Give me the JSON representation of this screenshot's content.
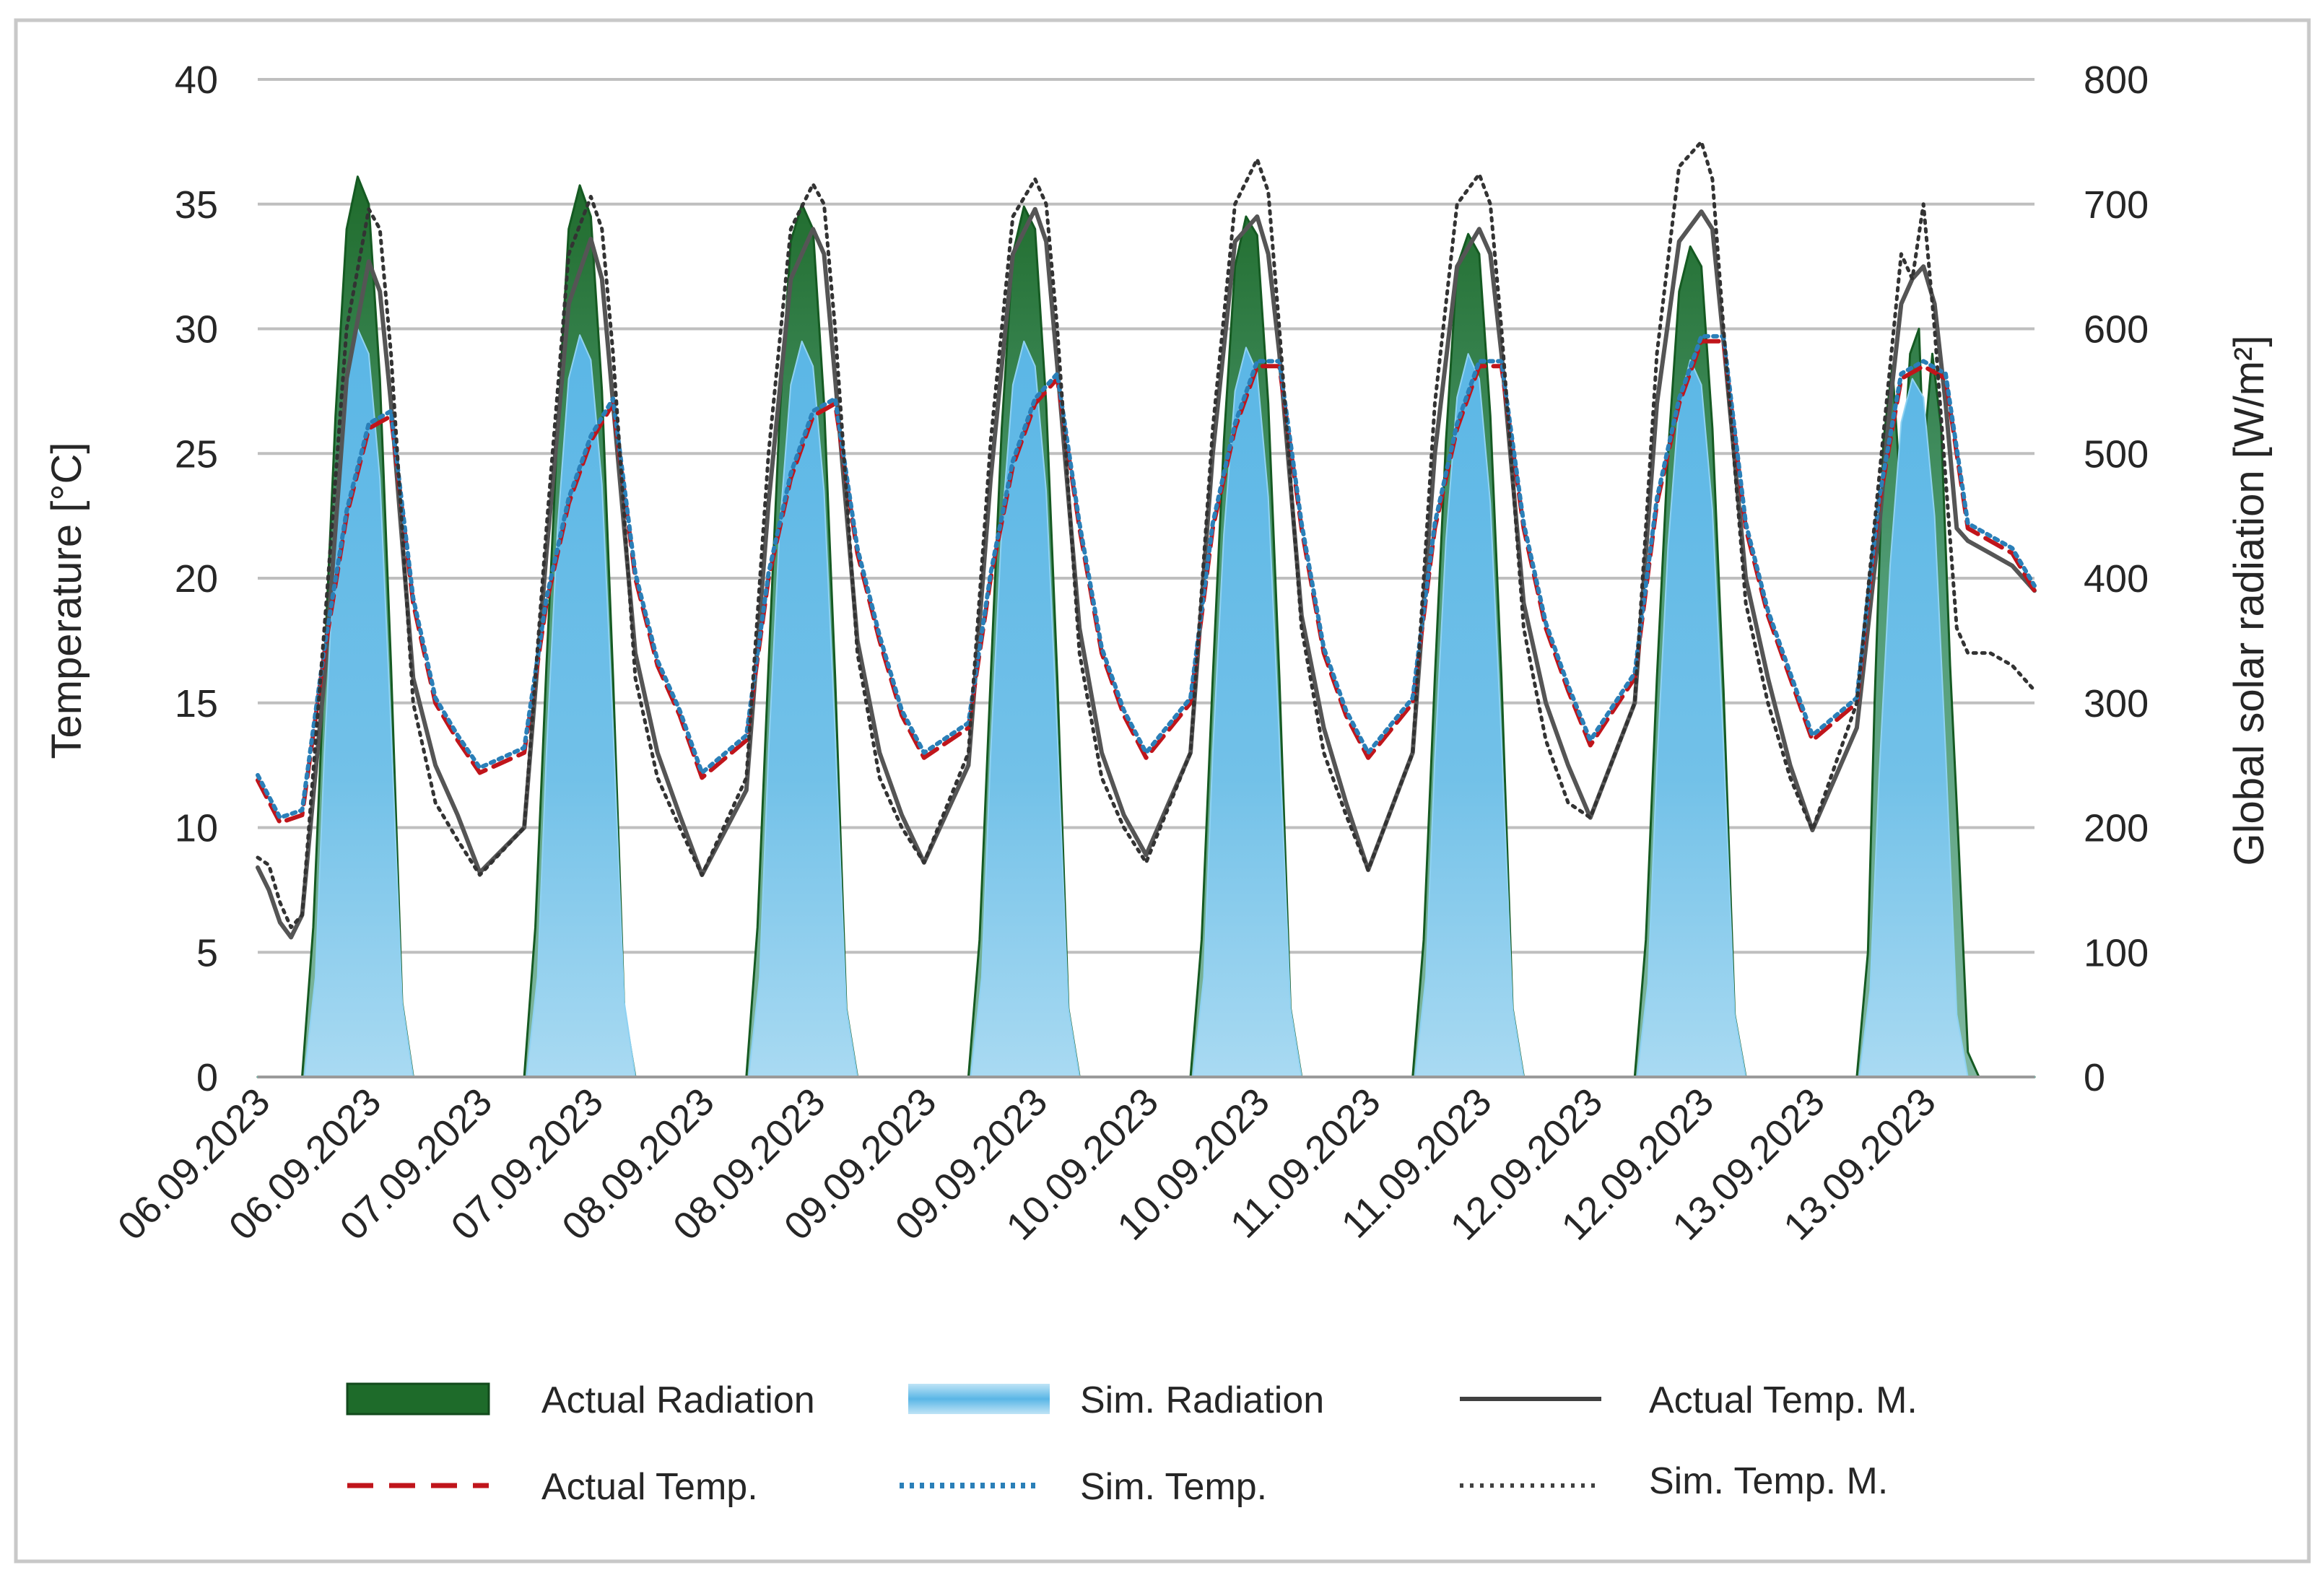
{
  "chart_data": {
    "type": "line",
    "title": "",
    "xlabel": "",
    "ylabel": "Temperature [°C]",
    "y2label": "Global solar radiation [W/m²]",
    "ylim": [
      0,
      40
    ],
    "y2lim": [
      0,
      800
    ],
    "yticks": [
      "0",
      "5",
      "10",
      "15",
      "20",
      "25",
      "30",
      "35",
      "40"
    ],
    "y2ticks": [
      "0",
      "100",
      "200",
      "300",
      "400",
      "500",
      "600",
      "700",
      "800"
    ],
    "xlim": [
      0,
      8
    ],
    "x_unit": "days since 06.09.2023 00:00",
    "x_tick_labels": [
      "06.09.2023",
      "06.09.2023",
      "07.09.2023",
      "07.09.2023",
      "08.09.2023",
      "08.09.2023",
      "09.09.2023",
      "09.09.2023",
      "10.09.2023",
      "10.09.2023",
      "11.09.2023",
      "11.09.2023",
      "12.09.2023",
      "12.09.2023",
      "13.09.2023",
      "13.09.2023"
    ],
    "grid": true,
    "legend_position": "bottom",
    "series": [
      {
        "name": "Actual Radiation",
        "axis": "right",
        "kind": "area",
        "color": "#1e6b2a",
        "x": [
          0,
          0.2,
          0.25,
          0.3,
          0.35,
          0.4,
          0.45,
          0.5,
          0.55,
          0.6,
          0.65,
          0.7,
          0.75,
          0.8,
          1,
          1.2,
          1.25,
          1.3,
          1.35,
          1.4,
          1.45,
          1.5,
          1.55,
          1.6,
          1.65,
          1.7,
          1.75,
          1.8,
          2,
          2.2,
          2.25,
          2.3,
          2.35,
          2.4,
          2.45,
          2.5,
          2.55,
          2.6,
          2.65,
          2.7,
          2.75,
          2.8,
          3,
          3.2,
          3.25,
          3.3,
          3.35,
          3.4,
          3.45,
          3.5,
          3.55,
          3.6,
          3.65,
          3.7,
          3.75,
          3.8,
          4,
          4.2,
          4.25,
          4.3,
          4.35,
          4.4,
          4.45,
          4.5,
          4.55,
          4.6,
          4.65,
          4.7,
          4.75,
          4.8,
          5,
          5.2,
          5.25,
          5.3,
          5.35,
          5.4,
          5.45,
          5.5,
          5.55,
          5.6,
          5.65,
          5.7,
          5.75,
          5.8,
          6,
          6.2,
          6.25,
          6.3,
          6.35,
          6.4,
          6.45,
          6.5,
          6.55,
          6.6,
          6.65,
          6.7,
          6.75,
          6.8,
          7,
          7.2,
          7.25,
          7.28,
          7.32,
          7.36,
          7.4,
          7.44,
          7.48,
          7.5,
          7.54,
          7.58,
          7.62,
          7.66,
          7.7,
          7.75,
          7.8,
          8
        ],
        "y": [
          0,
          0,
          120,
          330,
          530,
          680,
          722,
          700,
          560,
          330,
          60,
          0,
          0,
          0,
          0,
          0,
          120,
          330,
          520,
          680,
          715,
          690,
          550,
          320,
          55,
          0,
          0,
          0,
          0,
          0,
          120,
          330,
          530,
          670,
          700,
          680,
          540,
          320,
          55,
          0,
          0,
          0,
          0,
          0,
          110,
          320,
          520,
          660,
          698,
          680,
          540,
          320,
          55,
          0,
          0,
          0,
          0,
          0,
          110,
          320,
          510,
          650,
          690,
          675,
          540,
          320,
          55,
          0,
          0,
          0,
          0,
          0,
          110,
          320,
          510,
          650,
          676,
          660,
          530,
          320,
          55,
          0,
          0,
          0,
          0,
          0,
          110,
          320,
          500,
          630,
          666,
          650,
          520,
          310,
          50,
          0,
          0,
          0,
          0,
          0,
          100,
          300,
          510,
          570,
          460,
          580,
          600,
          500,
          580,
          520,
          330,
          180,
          20,
          0,
          0,
          0
        ]
      },
      {
        "name": "Sim. Radiation",
        "axis": "right",
        "kind": "area",
        "color": "#6ec1e4",
        "x": [
          0,
          0.21,
          0.26,
          0.3,
          0.35,
          0.4,
          0.45,
          0.5,
          0.55,
          0.6,
          0.65,
          0.7,
          0.75,
          1,
          1.21,
          1.26,
          1.3,
          1.35,
          1.4,
          1.45,
          1.5,
          1.55,
          1.6,
          1.65,
          1.7,
          1.75,
          2,
          2.21,
          2.26,
          2.3,
          2.35,
          2.4,
          2.45,
          2.5,
          2.55,
          2.6,
          2.65,
          2.7,
          2.75,
          3,
          3.21,
          3.26,
          3.3,
          3.35,
          3.4,
          3.45,
          3.5,
          3.55,
          3.6,
          3.65,
          3.7,
          3.75,
          4,
          4.21,
          4.26,
          4.3,
          4.35,
          4.4,
          4.45,
          4.5,
          4.55,
          4.6,
          4.65,
          4.7,
          4.75,
          5,
          5.21,
          5.26,
          5.3,
          5.35,
          5.4,
          5.45,
          5.5,
          5.55,
          5.6,
          5.65,
          5.7,
          5.75,
          6,
          6.21,
          6.26,
          6.3,
          6.35,
          6.4,
          6.45,
          6.5,
          6.55,
          6.6,
          6.65,
          6.7,
          6.75,
          7,
          7.21,
          7.26,
          7.3,
          7.35,
          7.4,
          7.45,
          7.5,
          7.55,
          7.6,
          7.65,
          7.7,
          7.75,
          8
        ],
        "y": [
          0,
          0,
          80,
          260,
          440,
          560,
          600,
          580,
          480,
          280,
          60,
          0,
          0,
          0,
          0,
          80,
          260,
          440,
          560,
          595,
          575,
          475,
          280,
          60,
          0,
          0,
          0,
          0,
          80,
          260,
          440,
          555,
          590,
          570,
          470,
          275,
          55,
          0,
          0,
          0,
          0,
          80,
          260,
          440,
          555,
          590,
          570,
          470,
          275,
          55,
          0,
          0,
          0,
          0,
          80,
          260,
          435,
          550,
          585,
          565,
          465,
          270,
          55,
          0,
          0,
          0,
          0,
          80,
          255,
          430,
          545,
          580,
          560,
          460,
          270,
          55,
          0,
          0,
          0,
          0,
          75,
          250,
          425,
          540,
          575,
          555,
          455,
          265,
          50,
          0,
          0,
          0,
          0,
          70,
          240,
          410,
          525,
          560,
          545,
          450,
          260,
          50,
          0,
          0,
          0
        ]
      },
      {
        "name": "Actual Temp. M.",
        "axis": "left",
        "kind": "line",
        "color": "#595959",
        "x": [
          0,
          0.05,
          0.1,
          0.15,
          0.2,
          0.3,
          0.4,
          0.5,
          0.55,
          0.6,
          0.7,
          0.8,
          0.9,
          1,
          1.2,
          1.3,
          1.4,
          1.5,
          1.55,
          1.6,
          1.7,
          1.8,
          1.9,
          2,
          2.2,
          2.3,
          2.4,
          2.5,
          2.55,
          2.6,
          2.7,
          2.8,
          2.9,
          3,
          3.2,
          3.3,
          3.4,
          3.5,
          3.55,
          3.6,
          3.7,
          3.8,
          3.9,
          4,
          4.2,
          4.3,
          4.4,
          4.5,
          4.55,
          4.6,
          4.7,
          4.8,
          4.9,
          5,
          5.2,
          5.3,
          5.4,
          5.5,
          5.55,
          5.6,
          5.7,
          5.8,
          5.9,
          6,
          6.2,
          6.3,
          6.4,
          6.5,
          6.55,
          6.6,
          6.7,
          6.8,
          6.9,
          7,
          7.2,
          7.3,
          7.35,
          7.4,
          7.45,
          7.5,
          7.55,
          7.6,
          7.65,
          7.7,
          7.8,
          7.9,
          8
        ],
        "y": [
          8.4,
          7.5,
          6.2,
          5.6,
          6.5,
          16,
          28,
          32.7,
          31.5,
          27,
          16,
          12.5,
          10.5,
          8.2,
          10,
          21,
          31,
          33.6,
          32,
          27,
          17,
          13,
          10.5,
          8.1,
          11.5,
          23,
          32,
          34,
          33,
          28,
          17.5,
          13,
          10.5,
          8.6,
          12.5,
          24,
          33,
          34.8,
          33.5,
          28.5,
          18,
          13,
          10.5,
          8.9,
          13,
          25,
          33.5,
          34.5,
          33,
          29,
          18.5,
          14,
          11,
          8.3,
          13,
          25,
          32.5,
          34,
          33,
          29,
          19,
          15,
          12.5,
          10.4,
          15,
          27,
          33.5,
          34.7,
          34,
          29.5,
          20,
          16,
          12.5,
          9.9,
          14,
          22,
          27,
          31,
          32,
          32.5,
          31,
          27,
          22,
          21.5,
          21,
          20.5,
          19.5
        ]
      },
      {
        "name": "Actual Temp.",
        "axis": "left",
        "kind": "line",
        "color": "#c0151b",
        "x": [
          0,
          0.1,
          0.2,
          0.3,
          0.4,
          0.5,
          0.6,
          0.7,
          0.8,
          0.9,
          1,
          1.2,
          1.3,
          1.4,
          1.5,
          1.6,
          1.7,
          1.8,
          1.9,
          2,
          2.2,
          2.3,
          2.4,
          2.5,
          2.6,
          2.7,
          2.8,
          2.9,
          3,
          3.2,
          3.3,
          3.4,
          3.5,
          3.6,
          3.7,
          3.8,
          3.9,
          4,
          4.2,
          4.3,
          4.4,
          4.5,
          4.6,
          4.7,
          4.8,
          4.9,
          5,
          5.2,
          5.3,
          5.4,
          5.5,
          5.6,
          5.7,
          5.8,
          5.9,
          6,
          6.2,
          6.3,
          6.4,
          6.5,
          6.6,
          6.7,
          6.8,
          6.9,
          7,
          7.2,
          7.3,
          7.4,
          7.5,
          7.6,
          7.7,
          7.8,
          7.9,
          8
        ],
        "y": [
          11.9,
          10.2,
          10.5,
          17,
          22.5,
          26,
          26.5,
          19,
          15,
          13.5,
          12.2,
          13,
          19,
          23,
          25.5,
          27,
          20,
          16.5,
          14.5,
          12,
          13.5,
          20,
          24,
          26.5,
          27,
          21,
          17.5,
          14.5,
          12.8,
          14,
          20,
          24.5,
          27,
          28,
          22,
          17,
          14.5,
          12.8,
          15,
          22,
          26,
          28.5,
          28.5,
          22,
          17,
          14.5,
          12.8,
          15,
          22,
          26,
          28.5,
          28.5,
          22,
          18,
          15.5,
          13.3,
          16,
          23,
          27,
          29.5,
          29.5,
          22,
          18.5,
          16,
          13.5,
          15,
          23,
          28,
          28.5,
          28,
          22,
          21.5,
          21,
          19.5
        ]
      },
      {
        "name": "Sim. Temp.",
        "axis": "left",
        "kind": "line",
        "color": "#2a7fb8",
        "x": [
          0,
          0.1,
          0.2,
          0.3,
          0.4,
          0.5,
          0.6,
          0.7,
          0.8,
          0.9,
          1,
          1.2,
          1.3,
          1.4,
          1.5,
          1.6,
          1.7,
          1.8,
          1.9,
          2,
          2.2,
          2.3,
          2.4,
          2.5,
          2.6,
          2.7,
          2.8,
          2.9,
          3,
          3.2,
          3.3,
          3.4,
          3.5,
          3.6,
          3.7,
          3.8,
          3.9,
          4,
          4.2,
          4.3,
          4.4,
          4.5,
          4.6,
          4.7,
          4.8,
          4.9,
          5,
          5.2,
          5.3,
          5.4,
          5.5,
          5.6,
          5.7,
          5.8,
          5.9,
          6,
          6.2,
          6.3,
          6.4,
          6.5,
          6.6,
          6.7,
          6.8,
          6.9,
          7,
          7.2,
          7.3,
          7.4,
          7.5,
          7.6,
          7.7,
          7.8,
          7.9,
          8
        ],
        "y": [
          12.1,
          10.4,
          10.7,
          17.2,
          22.7,
          26.2,
          26.7,
          19.2,
          15.2,
          13.7,
          12.4,
          13.2,
          19.2,
          23.2,
          25.7,
          27.2,
          20.2,
          16.7,
          14.7,
          12.2,
          13.7,
          20.2,
          24.2,
          26.7,
          27.2,
          21.2,
          17.7,
          14.7,
          13,
          14.2,
          20.2,
          24.7,
          27.2,
          28.2,
          22.2,
          17.2,
          14.7,
          13,
          15.2,
          22.2,
          26.2,
          28.7,
          28.7,
          22.2,
          17.2,
          14.7,
          13,
          15.2,
          22.2,
          26.2,
          28.7,
          28.7,
          22.2,
          18.2,
          15.7,
          13.5,
          16.2,
          23.2,
          27.2,
          29.7,
          29.7,
          22.2,
          18.7,
          16.2,
          13.7,
          15.2,
          23.2,
          28.2,
          28.7,
          28.2,
          22.2,
          21.7,
          21.2,
          19.7
        ]
      },
      {
        "name": "Sim. Temp. M.",
        "axis": "left",
        "kind": "line",
        "color": "#404040",
        "x": [
          0,
          0.05,
          0.1,
          0.15,
          0.2,
          0.3,
          0.4,
          0.5,
          0.55,
          0.6,
          0.7,
          0.8,
          0.9,
          1,
          1.2,
          1.3,
          1.4,
          1.5,
          1.55,
          1.6,
          1.7,
          1.8,
          1.9,
          2,
          2.2,
          2.3,
          2.4,
          2.5,
          2.55,
          2.6,
          2.7,
          2.8,
          2.9,
          3,
          3.2,
          3.3,
          3.4,
          3.5,
          3.55,
          3.6,
          3.7,
          3.8,
          3.9,
          4,
          4.2,
          4.3,
          4.4,
          4.5,
          4.55,
          4.6,
          4.7,
          4.8,
          4.9,
          5,
          5.2,
          5.3,
          5.4,
          5.5,
          5.55,
          5.6,
          5.7,
          5.8,
          5.9,
          6,
          6.2,
          6.3,
          6.4,
          6.5,
          6.55,
          6.6,
          6.7,
          6.8,
          6.9,
          7,
          7.2,
          7.3,
          7.35,
          7.4,
          7.45,
          7.5,
          7.55,
          7.6,
          7.65,
          7.7,
          7.8,
          7.9,
          8
        ],
        "y": [
          8.8,
          8.5,
          7,
          6,
          6.5,
          18,
          30,
          34.8,
          34,
          29,
          15,
          11,
          9.5,
          8.1,
          10,
          22,
          33,
          35.3,
          34,
          29,
          16,
          12,
          10,
          8.1,
          12,
          25,
          34,
          35.8,
          35,
          30,
          17,
          12,
          10,
          8.6,
          13,
          25.5,
          34.5,
          36,
          35,
          30,
          17,
          12,
          10,
          8.6,
          13,
          26,
          35,
          36.8,
          35.5,
          30,
          18,
          13,
          10.5,
          8.3,
          13,
          27,
          35,
          36.2,
          35,
          30,
          18,
          13.5,
          11,
          10.4,
          15,
          29,
          36.5,
          37.5,
          36,
          30,
          19,
          15,
          12,
          9.9,
          15,
          24,
          28.5,
          33,
          32,
          35,
          30,
          24,
          18,
          17,
          17,
          16.5,
          15.5
        ]
      }
    ]
  },
  "legend": {
    "items": [
      {
        "label": "Actual Radiation"
      },
      {
        "label": "Sim. Radiation"
      },
      {
        "label": "Actual Temp. M."
      },
      {
        "label": "Actual Temp."
      },
      {
        "label": "Sim. Temp."
      },
      {
        "label": "Sim. Temp. M."
      }
    ]
  }
}
